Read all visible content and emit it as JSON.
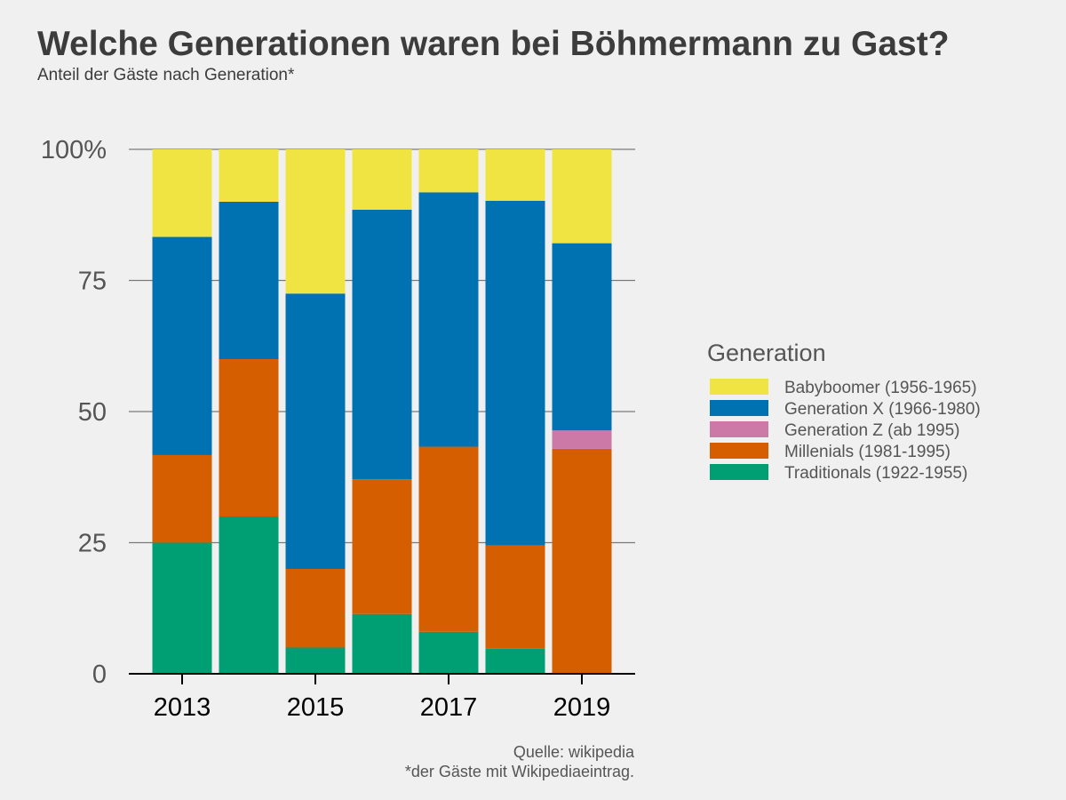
{
  "title": "Welche Generationen waren bei Böhmermann zu Gast?",
  "subtitle": "Anteil der Gäste nach Generation*",
  "source": {
    "line1": "Quelle: wikipedia",
    "line2": "*der Gäste mit Wikipediaeintrag."
  },
  "chart_data": {
    "type": "bar",
    "stacked": true,
    "x": [
      2013,
      2014,
      2015,
      2016,
      2017,
      2018,
      2019
    ],
    "x_tick_values": [
      2013,
      2015,
      2017,
      2019
    ],
    "x_tick_labels": [
      "2013",
      "2015",
      "2017",
      "2019"
    ],
    "y_tick_values": [
      0,
      25,
      50,
      75,
      100
    ],
    "y_tick_labels": [
      "0",
      "25",
      "50",
      "75",
      "100%"
    ],
    "ylim": [
      0,
      100
    ],
    "grid": "horizontal",
    "legend_title": "Generation",
    "legend_position": "right",
    "series": [
      {
        "name": "Traditionals (1922-1955)",
        "color": "#009e73",
        "values": [
          25,
          30,
          5,
          11.4,
          8,
          4.8,
          0
        ]
      },
      {
        "name": "Millenials (1981-1995)",
        "color": "#d55e00",
        "values": [
          16.7,
          30,
          15,
          25.7,
          35.3,
          19.7,
          42.9
        ]
      },
      {
        "name": "Generation Z (ab 1995)",
        "color": "#cc79a7",
        "values": [
          0,
          0,
          0,
          0,
          0,
          0,
          3.5
        ]
      },
      {
        "name": "Generation X (1966-1980)",
        "color": "#0072b2",
        "values": [
          41.6,
          30,
          52.5,
          51.4,
          48.5,
          65.7,
          35.7
        ]
      },
      {
        "name": "Babyboomer (1956-1965)",
        "color": "#f0e442",
        "values": [
          16.7,
          10,
          27.5,
          11.5,
          8.2,
          9.8,
          17.9
        ]
      }
    ],
    "legend_order": [
      "Babyboomer (1956-1965)",
      "Generation X (1966-1980)",
      "Generation Z (ab 1995)",
      "Millenials (1981-1995)",
      "Traditionals (1922-1955)"
    ]
  }
}
